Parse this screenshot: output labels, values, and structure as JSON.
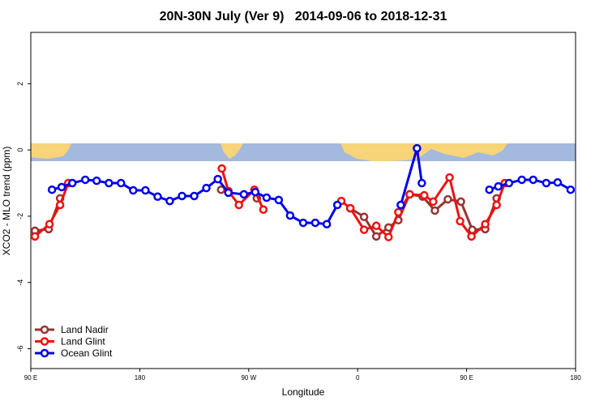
{
  "chart_data": {
    "type": "line",
    "title": "20N-30N July (Ver 9)   2014-09-06 to 2018-12-31",
    "x_label": "Longitude",
    "y_label": "XCO2 - MLO trend (ppm)",
    "xlim": [
      90,
      540
    ],
    "ylim": [
      -6.6,
      3.55
    ],
    "xticks": [
      {
        "value": 90,
        "label": "90 E"
      },
      180,
      {
        "value": 270,
        "label": "90 W"
      },
      {
        "value": 360,
        "label": "0"
      },
      {
        "value": 450,
        "label": "90 E"
      },
      {
        "value": 540,
        "label": "180"
      }
    ],
    "yticks": [
      -6,
      -4,
      -2,
      0,
      2
    ],
    "legend": "bottom-left",
    "series": [
      {
        "name": "Land Nadir",
        "color": "#993333",
        "x": [
          93.4,
          104.8,
          114.2,
          247.2,
          276.7,
          353.9,
          365.3,
          375.4,
          385.5,
          393.6,
          403,
          413.7,
          423.8,
          434.5,
          445.3,
          454.7,
          465.4,
          474.8
        ],
        "values": [
          -2.44,
          -2.39,
          -1.46,
          -1.2,
          -1.46,
          -1.76,
          -2.02,
          -2.61,
          -2.34,
          -2.12,
          -1.34,
          -1.41,
          -1.83,
          -1.49,
          -1.56,
          -2.41,
          -2.39,
          -1.46
        ]
      },
      {
        "name": "Land Glint",
        "color": "#ee1111",
        "x": [
          93.4,
          105.4,
          114.2,
          120.9,
          247.8,
          253.2,
          261.9,
          274.7,
          282.1,
          346.5,
          353.9,
          365.3,
          375.4,
          385.5,
          393.6,
          403,
          415,
          422.4,
          435.9,
          444.6,
          454,
          465.4,
          474.8,
          481.5
        ],
        "values": [
          -2.61,
          -2.24,
          -1.66,
          -1.0,
          -0.56,
          -1.24,
          -1.66,
          -1.2,
          -1.8,
          -1.54,
          -1.76,
          -2.41,
          -2.29,
          -2.63,
          -1.88,
          -1.34,
          -1.37,
          -1.56,
          -0.83,
          -2.15,
          -2.61,
          -2.24,
          -1.66,
          -1.0
        ]
      },
      {
        "name": "Ocean Glint",
        "color": "#0000ee",
        "x": [
          107.5,
          115.5,
          124.3,
          135,
          144.4,
          154.5,
          164.5,
          174.6,
          184.7,
          194.8,
          204.8,
          214.9,
          225,
          235,
          244.5,
          253.2,
          266,
          275.4,
          284.8,
          294.8,
          304.2,
          315,
          325,
          334.5,
          343.2,
          395.6,
          409,
          413,
          468.8,
          476.2,
          485,
          495.6,
          505,
          515.8,
          525.2,
          535.9
        ],
        "values": [
          -1.2,
          -1.12,
          -1.0,
          -0.9,
          -0.93,
          -1.0,
          -1.0,
          -1.22,
          -1.22,
          -1.41,
          -1.54,
          -1.39,
          -1.39,
          -1.15,
          -0.88,
          -1.29,
          -1.34,
          -1.27,
          -1.44,
          -1.51,
          -1.98,
          -2.2,
          -2.2,
          -2.24,
          -1.66,
          -1.66,
          0.05,
          -1.0,
          -1.2,
          -1.1,
          -1.0,
          -0.9,
          -0.9,
          -1.0,
          -0.98,
          -1.2
        ]
      }
    ]
  }
}
